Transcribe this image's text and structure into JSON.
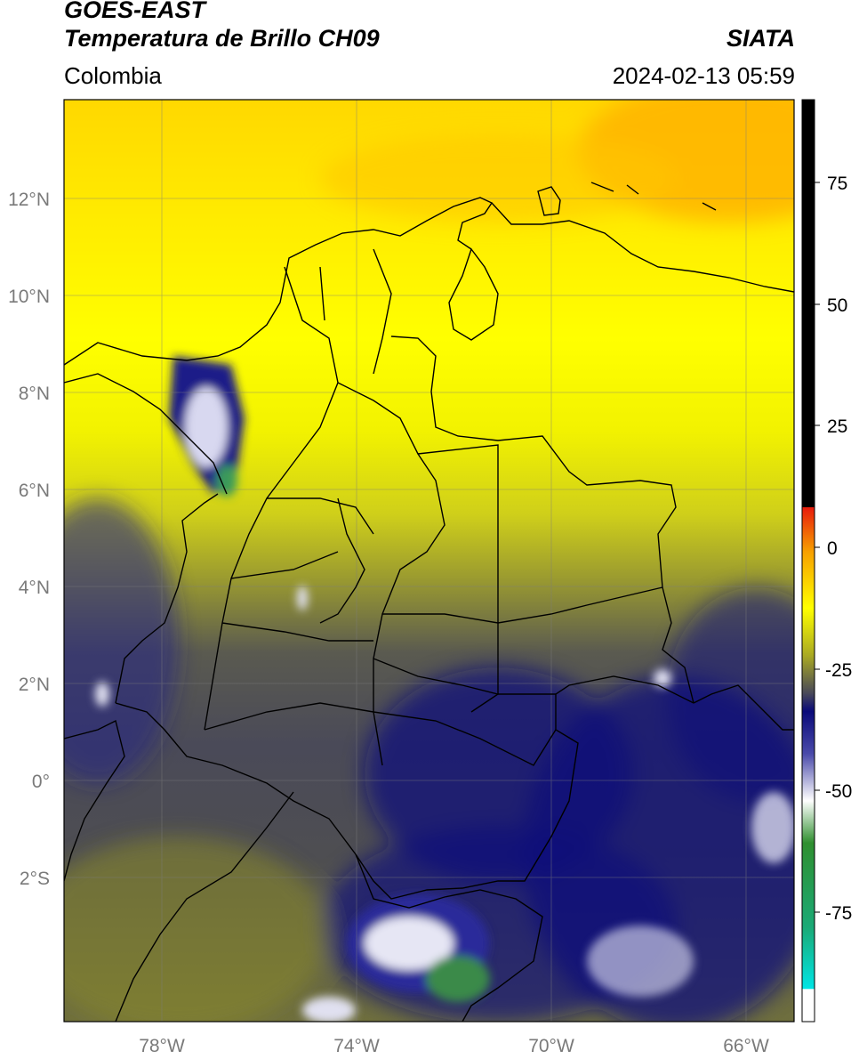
{
  "header": {
    "satellite": "GOES-EAST",
    "product": "Temperatura de Brillo CH09",
    "organization": "SIATA",
    "region": "Colombia",
    "timestamp": "2024-02-13 05:59"
  },
  "map": {
    "lat_range": [
      -5,
      14
    ],
    "lon_range": [
      -80,
      -65
    ],
    "lat_ticks": [
      "12°N",
      "10°N",
      "8°N",
      "6°N",
      "4°N",
      "2°N",
      "0°",
      "2°S"
    ],
    "lon_ticks": [
      "78°W",
      "74°W",
      "70°W",
      "66°W"
    ],
    "grid": true
  },
  "colorbar": {
    "range": [
      -95,
      90
    ],
    "tick_labels": [
      "75",
      "50",
      "25",
      "0",
      "-25",
      "-50",
      "-75"
    ],
    "colors": {
      "warm_top": "#000000",
      "red": "#e81b0c",
      "orange": "#f7a000",
      "yellow": "#ffff00",
      "olive": "#8a8a2a",
      "gray": "#4a4a58",
      "navy": "#0a0a7a",
      "white": "#ffffff",
      "green": "#2f8f2f",
      "cyan": "#00e5e5"
    }
  }
}
